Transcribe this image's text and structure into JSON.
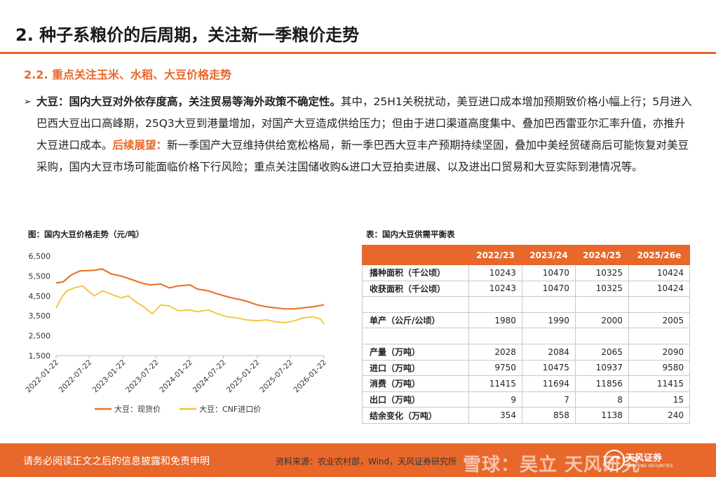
{
  "header": {
    "title": "2. 种子系粮价的后周期，关注新一季粮价走势",
    "section": "2.2. 重点关注玉米、水稻、大豆价格走势"
  },
  "body": {
    "bullet": "➢",
    "lead_bold": "大豆：国内大豆对外依存度高，关注贸易等海外政策不确定性。",
    "text1": "其中，25H1关税扰动，美豆进口成本增加预期致价格小幅上行；5月进入巴西大豆出口高峰期，25Q3大豆到港量增加，对国产大豆造成供给压力；但由于进口渠道高度集中、叠加巴西雷亚尔汇率升值，亦推升大豆进口成本。",
    "outlook_label": "后续展望：",
    "text2": "新一季国产大豆维持供给宽松格局，新一季巴西大豆丰产预期持续坚固，叠加中美经贸磋商后可能恢复对美豆采购，国内大豆市场可能面临价格下行风险；重点关注国储收购&进口大豆拍卖进展、以及进出口贸易和大豆实际到港情况等。"
  },
  "chart": {
    "title": "图：国内大豆价格走势（元/吨）",
    "colors": {
      "spot": "#e8762d",
      "cnf": "#f5c330"
    }
  },
  "chart_data": {
    "type": "line",
    "title": "图：国内大豆价格走势（元/吨）",
    "yticks": [
      "6,500",
      "5,500",
      "4,500",
      "3,500",
      "2,500",
      "1,500"
    ],
    "ylim": [
      1500,
      6500
    ],
    "xticks": [
      "2022-01-22",
      "2022-07-22",
      "2023-01-22",
      "2023-07-22",
      "2024-01-22",
      "2024-07-22",
      "2025-01-22",
      "2025-07-22",
      "2026-01-22"
    ],
    "xlim": [
      "2022-01-22",
      "2026-01-22"
    ],
    "legend_position": "bottom",
    "grid": false,
    "series": [
      {
        "name": "大豆：现货价",
        "points": [
          [
            "2022-01-22",
            5150
          ],
          [
            "2022-03-01",
            5200
          ],
          [
            "2022-04-15",
            5550
          ],
          [
            "2022-06-01",
            5750
          ],
          [
            "2022-08-15",
            5780
          ],
          [
            "2022-10-01",
            5850
          ],
          [
            "2022-11-20",
            5600
          ],
          [
            "2023-01-10",
            5500
          ],
          [
            "2023-03-01",
            5350
          ],
          [
            "2023-05-01",
            5150
          ],
          [
            "2023-06-20",
            5050
          ],
          [
            "2023-08-15",
            5100
          ],
          [
            "2023-10-01",
            4900
          ],
          [
            "2023-11-20",
            5000
          ],
          [
            "2024-01-22",
            5050
          ],
          [
            "2024-03-01",
            4850
          ],
          [
            "2024-05-01",
            4750
          ],
          [
            "2024-06-20",
            4600
          ],
          [
            "2024-08-15",
            4450
          ],
          [
            "2024-10-01",
            4350
          ],
          [
            "2024-11-20",
            4250
          ],
          [
            "2025-01-22",
            4050
          ],
          [
            "2025-03-15",
            3950
          ],
          [
            "2025-05-01",
            3900
          ],
          [
            "2025-06-20",
            3850
          ],
          [
            "2025-08-15",
            3850
          ],
          [
            "2025-10-01",
            3900
          ],
          [
            "2025-11-20",
            3950
          ],
          [
            "2026-01-22",
            4050
          ]
        ]
      },
      {
        "name": "大豆：CNF进口价",
        "points": [
          [
            "2022-01-22",
            3900
          ],
          [
            "2022-02-20",
            4400
          ],
          [
            "2022-03-20",
            4750
          ],
          [
            "2022-05-01",
            4900
          ],
          [
            "2022-06-15",
            5000
          ],
          [
            "2022-07-22",
            4700
          ],
          [
            "2022-08-20",
            4500
          ],
          [
            "2022-10-01",
            4750
          ],
          [
            "2022-11-15",
            4600
          ],
          [
            "2023-01-10",
            4400
          ],
          [
            "2023-02-20",
            4500
          ],
          [
            "2023-04-01",
            4200
          ],
          [
            "2023-05-15",
            3950
          ],
          [
            "2023-07-01",
            3600
          ],
          [
            "2023-08-15",
            4050
          ],
          [
            "2023-10-01",
            4000
          ],
          [
            "2023-11-20",
            3750
          ],
          [
            "2024-01-22",
            3800
          ],
          [
            "2024-03-01",
            3700
          ],
          [
            "2024-05-01",
            3800
          ],
          [
            "2024-06-20",
            3600
          ],
          [
            "2024-08-15",
            3450
          ],
          [
            "2024-10-01",
            3400
          ],
          [
            "2024-11-20",
            3300
          ],
          [
            "2025-01-22",
            3250
          ],
          [
            "2025-03-15",
            3300
          ],
          [
            "2025-05-01",
            3200
          ],
          [
            "2025-06-20",
            3150
          ],
          [
            "2025-08-15",
            3250
          ],
          [
            "2025-10-01",
            3400
          ],
          [
            "2025-11-20",
            3450
          ],
          [
            "2026-01-01",
            3350
          ],
          [
            "2026-01-22",
            3100
          ]
        ]
      }
    ]
  },
  "table": {
    "title": "表：国内大豆供需平衡表",
    "columns": [
      "",
      "2022/23",
      "2023/24",
      "2024/25",
      "2025/26e"
    ],
    "rows": [
      [
        "播种面积（千公顷）",
        "10243",
        "10470",
        "10325",
        "10424"
      ],
      [
        "收获面积（千公顷）",
        "10243",
        "10470",
        "10325",
        "10424"
      ],
      [
        "",
        "",
        "",
        "",
        ""
      ],
      [
        "单产（公斤/公顷）",
        "1980",
        "1990",
        "2000",
        "2005"
      ],
      [
        "",
        "",
        "",
        "",
        ""
      ],
      [
        "产量（万吨）",
        "2028",
        "2084",
        "2065",
        "2090"
      ],
      [
        "进口（万吨）",
        "9750",
        "10475",
        "10937",
        "9580"
      ],
      [
        "消费（万吨）",
        "11415",
        "11694",
        "11856",
        "11415"
      ],
      [
        "出口（万吨）",
        "9",
        "7",
        "8",
        "15"
      ],
      [
        "结余变化（万吨）",
        "354",
        "858",
        "1138",
        "240"
      ]
    ]
  },
  "footer": {
    "disclaimer": "请务必阅读正文之后的信息披露和免责申明",
    "source": "资料来源：农业农村部，Wind，天风证券研究所",
    "watermark": "雪球：吴立 天风研究",
    "brand": "天风证券",
    "brand_sub": "TIANFENG SECURITIES"
  }
}
